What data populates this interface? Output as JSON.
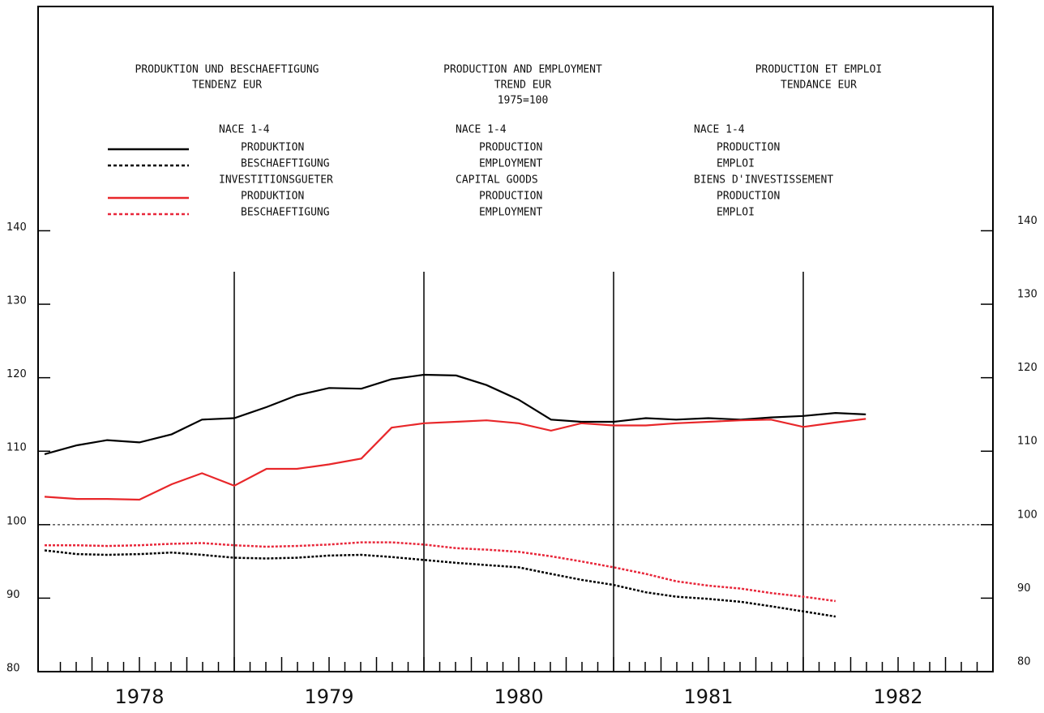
{
  "chart_data": {
    "type": "line",
    "titles": [
      [
        "PRODUKTION UND BESCHAEFTIGUNG",
        "TENDENZ EUR"
      ],
      [
        "PRODUCTION AND EMPLOYMENT",
        "TREND EUR",
        "1975=100"
      ],
      [
        "PRODUCTION ET EMPLOI",
        "TENDANCE EUR"
      ]
    ],
    "legend_groups": [
      [
        "NACE 1-4",
        "NACE 1-4",
        "NACE 1-4"
      ],
      [
        "INVESTITIONSGUETER",
        "CAPITAL GOODS",
        "BIENS D'INVESTISSEMENT"
      ]
    ],
    "categories": [
      "1978",
      "1979",
      "1980",
      "1981",
      "1982"
    ],
    "xlim": [
      1978,
      1983
    ],
    "xticks": [
      1979,
      1980,
      1981,
      1982
    ],
    "ylim": [
      80,
      148
    ],
    "yticks": [
      80,
      90,
      100,
      110,
      120,
      130,
      140
    ],
    "reference_line": 100,
    "x": [
      1978.0,
      1978.17,
      1978.33,
      1978.5,
      1978.67,
      1978.83,
      1979.0,
      1979.17,
      1979.33,
      1979.5,
      1979.67,
      1979.83,
      1980.0,
      1980.17,
      1980.33,
      1980.5,
      1980.67,
      1980.83,
      1981.0,
      1981.17,
      1981.33,
      1981.5,
      1981.67,
      1981.83,
      1982.0,
      1982.17,
      1982.33
    ],
    "series": [
      {
        "names": [
          "PRODUKTION",
          "PRODUCTION",
          "PRODUCTION"
        ],
        "group": 0,
        "color": "#000000",
        "dash": false,
        "values": [
          109.6,
          110.8,
          111.5,
          111.2,
          112.3,
          114.3,
          114.5,
          116.0,
          117.6,
          118.6,
          118.5,
          119.8,
          120.4,
          120.3,
          119.0,
          117.0,
          114.3,
          114.0,
          114.0,
          114.5,
          114.3,
          114.5,
          114.3,
          114.6,
          114.8,
          115.2,
          115.0
        ]
      },
      {
        "names": [
          "BESCHAEFTIGUNG",
          "EMPLOYMENT",
          "EMPLOI"
        ],
        "group": 0,
        "color": "#000000",
        "dash": true,
        "values": [
          96.5,
          96.0,
          95.9,
          96.0,
          96.2,
          95.9,
          95.5,
          95.4,
          95.5,
          95.8,
          95.9,
          95.6,
          95.2,
          94.8,
          94.5,
          94.2,
          93.3,
          92.5,
          91.8,
          90.8,
          90.2,
          89.9,
          89.5,
          88.9,
          88.2,
          87.5,
          null
        ]
      },
      {
        "names": [
          "PRODUKTION",
          "PRODUCTION",
          "PRODUCTION"
        ],
        "group": 1,
        "color": "#e8272a",
        "dash": false,
        "values": [
          103.8,
          103.5,
          103.5,
          103.4,
          105.5,
          107.0,
          105.3,
          107.6,
          107.6,
          108.2,
          109.0,
          113.2,
          113.8,
          114.0,
          114.2,
          113.8,
          112.8,
          113.8,
          113.5,
          113.5,
          113.8,
          114.0,
          114.2,
          114.3,
          113.3,
          113.9,
          114.4
        ]
      },
      {
        "names": [
          "BESCHAEFTIGUNG",
          "EMPLOYMENT",
          "EMPLOI"
        ],
        "group": 1,
        "color": "#e8273a",
        "dash": true,
        "values": [
          97.2,
          97.2,
          97.1,
          97.2,
          97.4,
          97.5,
          97.2,
          97.0,
          97.1,
          97.3,
          97.6,
          97.6,
          97.3,
          96.8,
          96.6,
          96.3,
          95.7,
          95.0,
          94.2,
          93.3,
          92.3,
          91.7,
          91.3,
          90.7,
          90.2,
          89.6,
          null
        ]
      }
    ]
  }
}
